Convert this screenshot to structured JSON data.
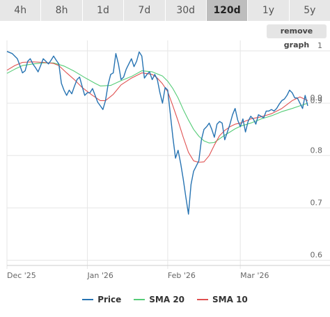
{
  "timeframe_tabs": [
    {
      "label": "4h",
      "active": false
    },
    {
      "label": "8h",
      "active": false
    },
    {
      "label": "1d",
      "active": false
    },
    {
      "label": "7d",
      "active": false
    },
    {
      "label": "30d",
      "active": false
    },
    {
      "label": "120d",
      "active": true
    },
    {
      "label": "1y",
      "active": false
    },
    {
      "label": "5y",
      "active": false
    }
  ],
  "remove_graph_label": "remove graph",
  "colors": {
    "price": "#2673b2",
    "sma20": "#55cc77",
    "sma10": "#e05050",
    "grid": "#e6e6e6",
    "axis_text": "#666666"
  },
  "chart_data": {
    "type": "line",
    "x_tick_labels": [
      "Dec '25",
      "Jan '26",
      "Feb '26",
      "Mar '26"
    ],
    "x_ticks": [
      0,
      31,
      62,
      90
    ],
    "y_tick_labels": [
      "0.6",
      "0.7",
      "0.8",
      "0.9",
      "1"
    ],
    "y_ticks": [
      0.6,
      0.7,
      0.8,
      0.9,
      1.0
    ],
    "ylim": [
      0.59,
      1.02
    ],
    "xlim": [
      0,
      116
    ],
    "last_value_label": "0.9",
    "series": [
      {
        "name": "Price",
        "color_key": "price",
        "points": [
          [
            0,
            0.999
          ],
          [
            2,
            0.995
          ],
          [
            4,
            0.985
          ],
          [
            5,
            0.972
          ],
          [
            6,
            0.958
          ],
          [
            7,
            0.962
          ],
          [
            8,
            0.98
          ],
          [
            9,
            0.985
          ],
          [
            10,
            0.975
          ],
          [
            11,
            0.968
          ],
          [
            12,
            0.96
          ],
          [
            13,
            0.972
          ],
          [
            14,
            0.985
          ],
          [
            15,
            0.98
          ],
          [
            16,
            0.975
          ],
          [
            17,
            0.982
          ],
          [
            18,
            0.99
          ],
          [
            19,
            0.982
          ],
          [
            20,
            0.975
          ],
          [
            21,
            0.938
          ],
          [
            22,
            0.925
          ],
          [
            23,
            0.915
          ],
          [
            24,
            0.925
          ],
          [
            25,
            0.918
          ],
          [
            26,
            0.932
          ],
          [
            27,
            0.945
          ],
          [
            28,
            0.95
          ],
          [
            29,
            0.932
          ],
          [
            30,
            0.915
          ],
          [
            31,
            0.92
          ],
          [
            32,
            0.92
          ],
          [
            33,
            0.928
          ],
          [
            34,
            0.915
          ],
          [
            35,
            0.902
          ],
          [
            36,
            0.895
          ],
          [
            37,
            0.888
          ],
          [
            38,
            0.905
          ],
          [
            39,
            0.935
          ],
          [
            40,
            0.955
          ],
          [
            41,
            0.958
          ],
          [
            42,
            0.995
          ],
          [
            43,
            0.975
          ],
          [
            44,
            0.945
          ],
          [
            45,
            0.95
          ],
          [
            46,
            0.965
          ],
          [
            47,
            0.975
          ],
          [
            48,
            0.985
          ],
          [
            49,
            0.97
          ],
          [
            50,
            0.98
          ],
          [
            51,
            0.998
          ],
          [
            52,
            0.99
          ],
          [
            53,
            0.948
          ],
          [
            54,
            0.955
          ],
          [
            55,
            0.96
          ],
          [
            56,
            0.945
          ],
          [
            57,
            0.955
          ],
          [
            58,
            0.945
          ],
          [
            59,
            0.92
          ],
          [
            60,
            0.9
          ],
          [
            61,
            0.93
          ],
          [
            62,
            0.925
          ],
          [
            63,
            0.88
          ],
          [
            64,
            0.835
          ],
          [
            65,
            0.795
          ],
          [
            66,
            0.81
          ],
          [
            67,
            0.785
          ],
          [
            68,
            0.755
          ],
          [
            69,
            0.72
          ],
          [
            70,
            0.688
          ],
          [
            71,
            0.745
          ],
          [
            72,
            0.77
          ],
          [
            73,
            0.78
          ],
          [
            74,
            0.79
          ],
          [
            75,
            0.83
          ],
          [
            76,
            0.85
          ],
          [
            77,
            0.855
          ],
          [
            78,
            0.862
          ],
          [
            79,
            0.85
          ],
          [
            80,
            0.835
          ],
          [
            81,
            0.86
          ],
          [
            82,
            0.865
          ],
          [
            83,
            0.862
          ],
          [
            84,
            0.83
          ],
          [
            85,
            0.845
          ],
          [
            86,
            0.86
          ],
          [
            87,
            0.878
          ],
          [
            88,
            0.89
          ],
          [
            89,
            0.868
          ],
          [
            90,
            0.855
          ],
          [
            91,
            0.87
          ],
          [
            92,
            0.845
          ],
          [
            93,
            0.865
          ],
          [
            94,
            0.875
          ],
          [
            95,
            0.87
          ],
          [
            96,
            0.86
          ],
          [
            97,
            0.878
          ],
          [
            98,
            0.875
          ],
          [
            99,
            0.872
          ],
          [
            100,
            0.885
          ],
          [
            101,
            0.885
          ],
          [
            102,
            0.888
          ],
          [
            103,
            0.885
          ],
          [
            104,
            0.89
          ],
          [
            105,
            0.898
          ],
          [
            106,
            0.905
          ],
          [
            107,
            0.908
          ],
          [
            108,
            0.915
          ],
          [
            109,
            0.925
          ],
          [
            110,
            0.92
          ],
          [
            111,
            0.91
          ],
          [
            112,
            0.91
          ],
          [
            113,
            0.9
          ],
          [
            114,
            0.89
          ],
          [
            115,
            0.915
          ],
          [
            116,
            0.895
          ]
        ]
      },
      {
        "name": "SMA 20",
        "color_key": "sma20",
        "points": [
          [
            0,
            0.957
          ],
          [
            3,
            0.965
          ],
          [
            6,
            0.972
          ],
          [
            10,
            0.975
          ],
          [
            14,
            0.977
          ],
          [
            18,
            0.977
          ],
          [
            22,
            0.971
          ],
          [
            26,
            0.961
          ],
          [
            30,
            0.949
          ],
          [
            34,
            0.938
          ],
          [
            36,
            0.933
          ],
          [
            40,
            0.934
          ],
          [
            44,
            0.943
          ],
          [
            48,
            0.951
          ],
          [
            52,
            0.962
          ],
          [
            56,
            0.96
          ],
          [
            60,
            0.952
          ],
          [
            62,
            0.942
          ],
          [
            64,
            0.928
          ],
          [
            66,
            0.91
          ],
          [
            68,
            0.888
          ],
          [
            70,
            0.868
          ],
          [
            72,
            0.85
          ],
          [
            74,
            0.837
          ],
          [
            76,
            0.828
          ],
          [
            78,
            0.824
          ],
          [
            80,
            0.825
          ],
          [
            82,
            0.832
          ],
          [
            84,
            0.839
          ],
          [
            86,
            0.845
          ],
          [
            88,
            0.851
          ],
          [
            90,
            0.856
          ],
          [
            94,
            0.862
          ],
          [
            98,
            0.87
          ],
          [
            102,
            0.876
          ],
          [
            106,
            0.884
          ],
          [
            110,
            0.89
          ],
          [
            113,
            0.895
          ],
          [
            116,
            0.9
          ]
        ]
      },
      {
        "name": "SMA 10",
        "color_key": "sma10",
        "points": [
          [
            0,
            0.963
          ],
          [
            3,
            0.972
          ],
          [
            6,
            0.978
          ],
          [
            10,
            0.979
          ],
          [
            14,
            0.978
          ],
          [
            18,
            0.976
          ],
          [
            20,
            0.972
          ],
          [
            23,
            0.958
          ],
          [
            26,
            0.945
          ],
          [
            29,
            0.93
          ],
          [
            33,
            0.915
          ],
          [
            36,
            0.905
          ],
          [
            38,
            0.905
          ],
          [
            41,
            0.917
          ],
          [
            44,
            0.935
          ],
          [
            48,
            0.948
          ],
          [
            52,
            0.958
          ],
          [
            56,
            0.955
          ],
          [
            58,
            0.948
          ],
          [
            60,
            0.937
          ],
          [
            62,
            0.922
          ],
          [
            64,
            0.895
          ],
          [
            66,
            0.866
          ],
          [
            68,
            0.835
          ],
          [
            70,
            0.806
          ],
          [
            72,
            0.79
          ],
          [
            74,
            0.787
          ],
          [
            76,
            0.788
          ],
          [
            78,
            0.8
          ],
          [
            80,
            0.82
          ],
          [
            82,
            0.838
          ],
          [
            84,
            0.848
          ],
          [
            86,
            0.855
          ],
          [
            88,
            0.86
          ],
          [
            90,
            0.862
          ],
          [
            94,
            0.87
          ],
          [
            98,
            0.874
          ],
          [
            102,
            0.88
          ],
          [
            106,
            0.89
          ],
          [
            110,
            0.905
          ],
          [
            113,
            0.912
          ],
          [
            116,
            0.905
          ]
        ]
      }
    ]
  }
}
